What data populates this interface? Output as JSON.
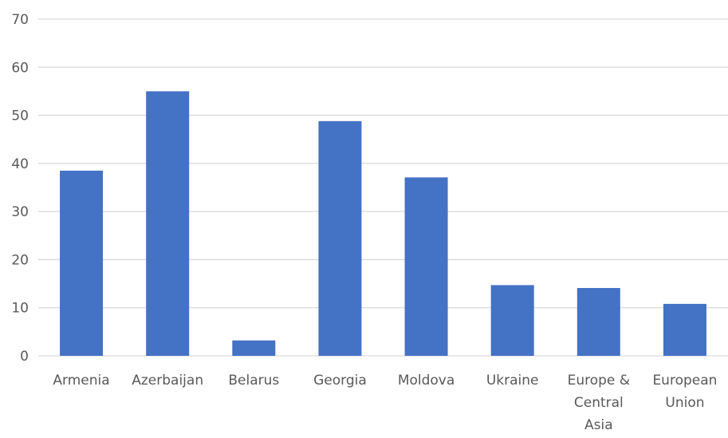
{
  "chart_data": {
    "type": "bar",
    "title": "",
    "xlabel": "",
    "ylabel": "",
    "ylim": [
      0,
      70
    ],
    "yticks": [
      0,
      10,
      20,
      30,
      40,
      50,
      60,
      70
    ],
    "grid": true,
    "legend": "none",
    "categories": [
      [
        "Armenia"
      ],
      [
        "Azerbaijan"
      ],
      [
        "Belarus"
      ],
      [
        "Georgia"
      ],
      [
        "Moldova"
      ],
      [
        "Ukraine"
      ],
      [
        "Europe &",
        "Central",
        "Asia"
      ],
      [
        "European",
        "Union"
      ]
    ],
    "values": [
      38.5,
      55,
      3.2,
      48.8,
      37.1,
      14.7,
      14.1,
      10.8
    ],
    "colors": {
      "bar": "#4472C4",
      "grid": "#D9D9D9",
      "text": "#595959"
    }
  }
}
